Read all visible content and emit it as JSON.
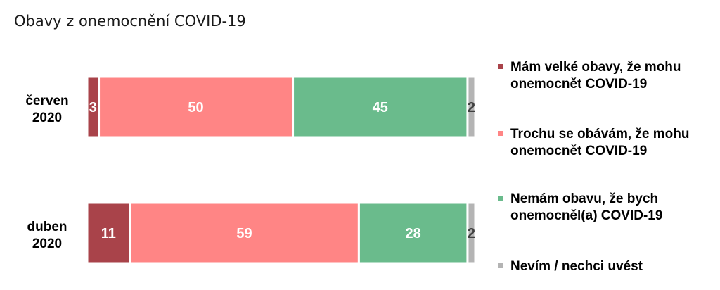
{
  "title": "Obavy z onemocnění COVID-19",
  "chart_data": {
    "type": "bar",
    "orientation": "horizontal",
    "stacked": true,
    "categories": [
      [
        "červen",
        "2020"
      ],
      [
        "duben",
        "2020"
      ]
    ],
    "series": [
      {
        "name": "Mám velké obavy, že mohu onemocnět COVID-19",
        "color": "#a9434a",
        "values": [
          3,
          11
        ]
      },
      {
        "name": "Trochu se obávám, že mohu onemocnět COVID-19",
        "color": "#ff8585",
        "values": [
          50,
          59
        ]
      },
      {
        "name": "Nemám obavu, že bych onemocněl(a) COVID-19",
        "color": "#6abb8c",
        "values": [
          45,
          28
        ]
      },
      {
        "name": "Nevím / nechci uvést",
        "color": "#b4b4b4",
        "values": [
          2,
          2
        ]
      }
    ],
    "xlim": [
      0,
      100
    ],
    "grid": false,
    "legend_position": "right"
  }
}
